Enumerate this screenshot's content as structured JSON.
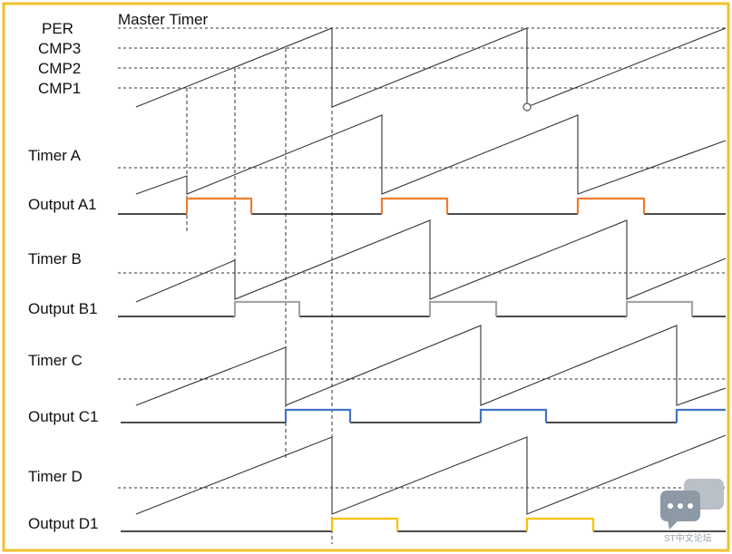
{
  "master": {
    "title": "Master Timer",
    "levels": [
      "PER",
      "CMP3",
      "CMP2",
      "CMP1"
    ]
  },
  "timers": [
    {
      "label": "Timer A",
      "output": "Output A1"
    },
    {
      "label": "Timer B",
      "output": "Output B1"
    },
    {
      "label": "Timer C",
      "output": "Output C1"
    },
    {
      "label": "Timer D",
      "output": "Output D1"
    }
  ],
  "colors": {
    "frame": "#f2c12e",
    "output_a1": "#ed7d31",
    "output_b1": "#a5a5a5",
    "output_c1": "#4472c4",
    "output_d1": "#ffc000",
    "trace": "#333333"
  },
  "watermark": {
    "icon": "chat-bubble-icon",
    "text": "ST中文论坛"
  }
}
